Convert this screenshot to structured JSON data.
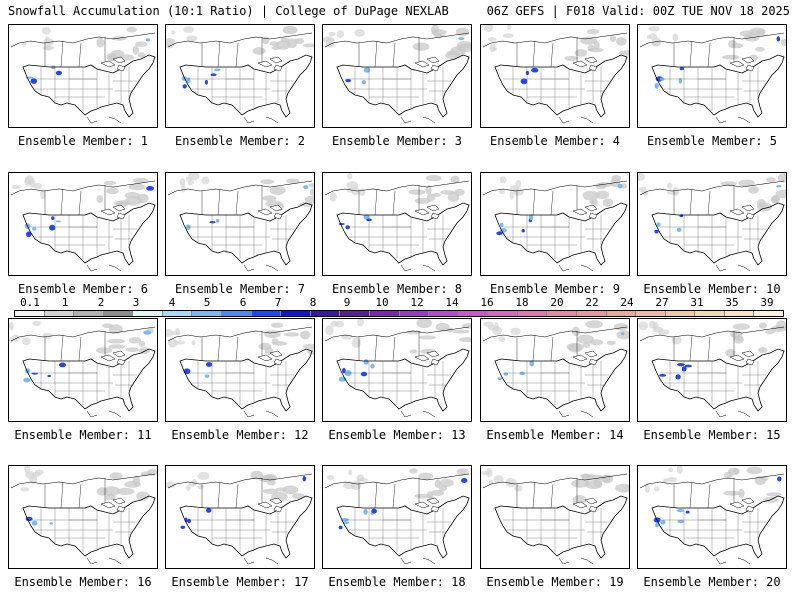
{
  "header": {
    "title_left": "Snowfall Accumulation (10:1 Ratio) | College of DuPage NEXLAB",
    "title_right": "06Z GEFS | F018 Valid: 00Z TUE NOV 18 2025"
  },
  "colorbar": {
    "tick_labels": [
      "0.1",
      "1",
      "2",
      "3",
      "4",
      "5",
      "6",
      "7",
      "8",
      "9",
      "10",
      "12",
      "14",
      "16",
      "18",
      "20",
      "22",
      "24",
      "27",
      "31",
      "35",
      "39"
    ],
    "colors": [
      "#f2f2f2",
      "#d2d2d2",
      "#b2b2b2",
      "#8c8c8c",
      "#dff6f6",
      "#a8dcf5",
      "#7fb8f0",
      "#4c8cf0",
      "#2246f0",
      "#1414c8",
      "#3a1a9c",
      "#5a208c",
      "#7a2aa6",
      "#9a3cbe",
      "#b44ec8",
      "#c85ac8",
      "#d46abe",
      "#dc78b4",
      "#e08aa8",
      "#e49a9c",
      "#e8aa98",
      "#ecbaa0",
      "#f0caa8",
      "#f4d8b4",
      "#f8e4c4",
      "#fcf0d8"
    ]
  },
  "panels": [
    {
      "label": "Ensemble Member: 1"
    },
    {
      "label": "Ensemble Member: 2"
    },
    {
      "label": "Ensemble Member: 3"
    },
    {
      "label": "Ensemble Member: 4"
    },
    {
      "label": "Ensemble Member: 5"
    },
    {
      "label": "Ensemble Member: 6"
    },
    {
      "label": "Ensemble Member: 7"
    },
    {
      "label": "Ensemble Member: 8"
    },
    {
      "label": "Ensemble Member: 9"
    },
    {
      "label": "Ensemble Member: 10"
    },
    {
      "label": "Ensemble Member: 11"
    },
    {
      "label": "Ensemble Member: 12"
    },
    {
      "label": "Ensemble Member: 13"
    },
    {
      "label": "Ensemble Member: 14"
    },
    {
      "label": "Ensemble Member: 15"
    },
    {
      "label": "Ensemble Member: 16"
    },
    {
      "label": "Ensemble Member: 17"
    },
    {
      "label": "Ensemble Member: 18"
    },
    {
      "label": "Ensemble Member: 19"
    },
    {
      "label": "Ensemble Member: 20"
    }
  ]
}
